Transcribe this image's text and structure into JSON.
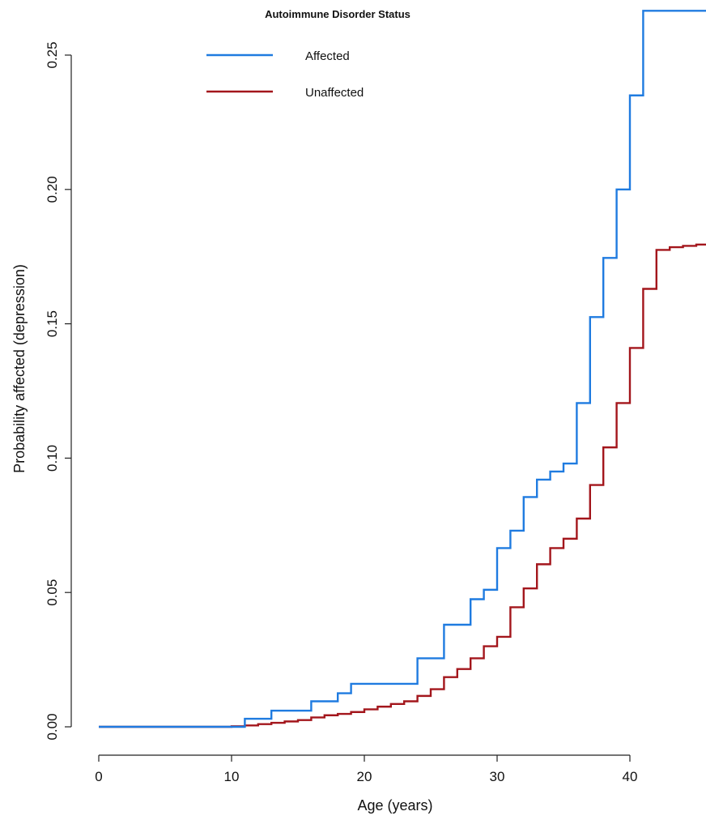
{
  "chart_data": {
    "type": "line",
    "step": true,
    "xlabel": "Age (years)",
    "ylabel": "Probability affected (depression)",
    "xlim": [
      0,
      46
    ],
    "ylim": [
      0,
      0.26
    ],
    "xticks": [
      0,
      10,
      20,
      30,
      40
    ],
    "yticks": [
      0.0,
      0.05,
      0.1,
      0.15,
      0.2,
      0.25
    ],
    "ytick_labels": [
      "0.00",
      "0.05",
      "0.10",
      "0.15",
      "0.20",
      "0.25"
    ],
    "grid": false,
    "legend": {
      "title": "Autoimmune Disorder Status",
      "position": "top-center"
    },
    "series": [
      {
        "name": "Affected",
        "color": "#1f7be0",
        "x": [
          0,
          11,
          13,
          16,
          18,
          19,
          24,
          26,
          28,
          29,
          30,
          31,
          32,
          33,
          34,
          35,
          36,
          37,
          38,
          39,
          40,
          41,
          46
        ],
        "y": [
          0.0,
          0.003,
          0.006,
          0.0095,
          0.0125,
          0.016,
          0.0255,
          0.038,
          0.0475,
          0.051,
          0.0665,
          0.073,
          0.0855,
          0.092,
          0.095,
          0.098,
          0.1205,
          0.1525,
          0.1745,
          0.2,
          0.235,
          0.2665,
          0.2665
        ]
      },
      {
        "name": "Unaffected",
        "color": "#a3161c",
        "x": [
          0,
          10,
          11,
          12,
          13,
          14,
          15,
          16,
          17,
          18,
          19,
          20,
          21,
          22,
          23,
          24,
          25,
          26,
          27,
          28,
          29,
          30,
          31,
          32,
          33,
          34,
          35,
          36,
          37,
          38,
          39,
          40,
          41,
          42,
          43,
          44,
          45,
          46
        ],
        "y": [
          0.0,
          0.0002,
          0.0005,
          0.001,
          0.0015,
          0.002,
          0.0025,
          0.0035,
          0.0043,
          0.0048,
          0.0055,
          0.0065,
          0.0075,
          0.0085,
          0.0095,
          0.0115,
          0.014,
          0.0185,
          0.0215,
          0.0255,
          0.03,
          0.0335,
          0.0445,
          0.0515,
          0.0605,
          0.0665,
          0.07,
          0.0775,
          0.09,
          0.104,
          0.1205,
          0.141,
          0.163,
          0.1775,
          0.1785,
          0.179,
          0.1795,
          0.18
        ]
      }
    ]
  }
}
